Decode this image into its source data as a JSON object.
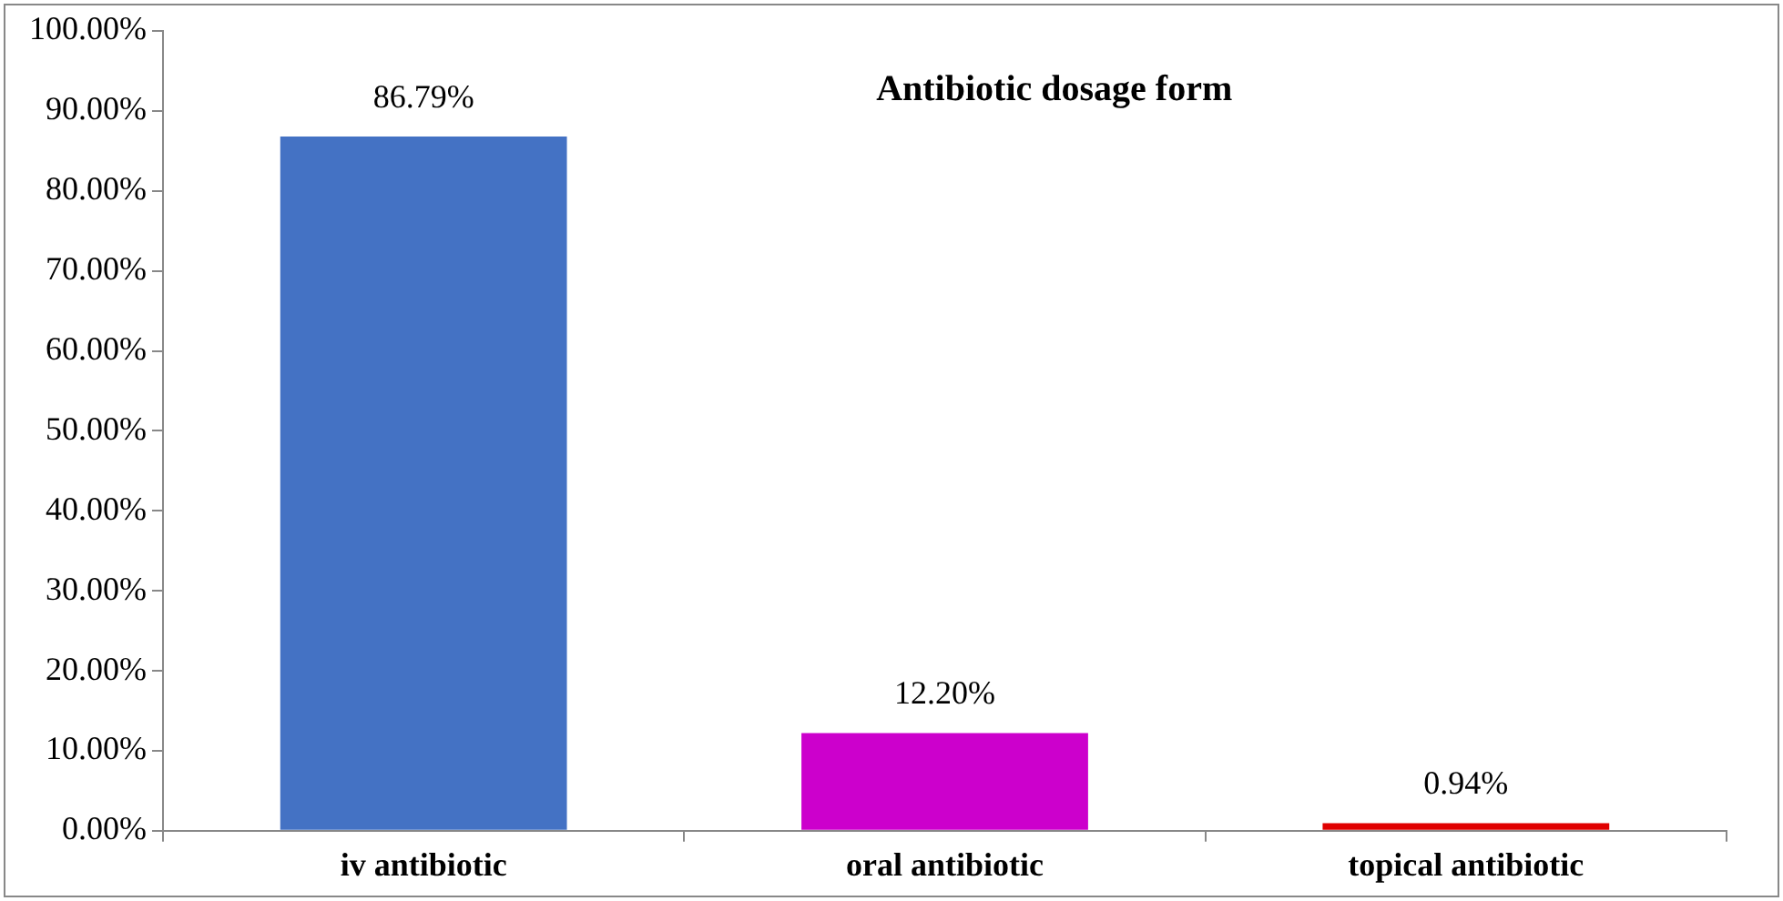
{
  "chart_data": {
    "type": "bar",
    "title": "Antibiotic dosage form",
    "categories": [
      "iv antibiotic",
      "oral antibiotic",
      "topical antibiotic"
    ],
    "values": [
      86.79,
      12.2,
      0.94
    ],
    "colors": [
      "#4472c4",
      "#cc00cc",
      "#e00000"
    ],
    "value_labels": [
      "86.79%",
      "12.20%",
      "0.94%"
    ],
    "ylim": [
      0,
      100
    ],
    "yticks": [
      {
        "value": 0,
        "label": "0.00%"
      },
      {
        "value": 10,
        "label": "10.00%"
      },
      {
        "value": 20,
        "label": "20.00%"
      },
      {
        "value": 30,
        "label": "30.00%"
      },
      {
        "value": 40,
        "label": "40.00%"
      },
      {
        "value": 50,
        "label": "50.00%"
      },
      {
        "value": 60,
        "label": "60.00%"
      },
      {
        "value": 70,
        "label": "70.00%"
      },
      {
        "value": 80,
        "label": "80.00%"
      },
      {
        "value": 90,
        "label": "90.00%"
      },
      {
        "value": 100,
        "label": "100.00%"
      }
    ],
    "grid": false,
    "legend": false
  }
}
